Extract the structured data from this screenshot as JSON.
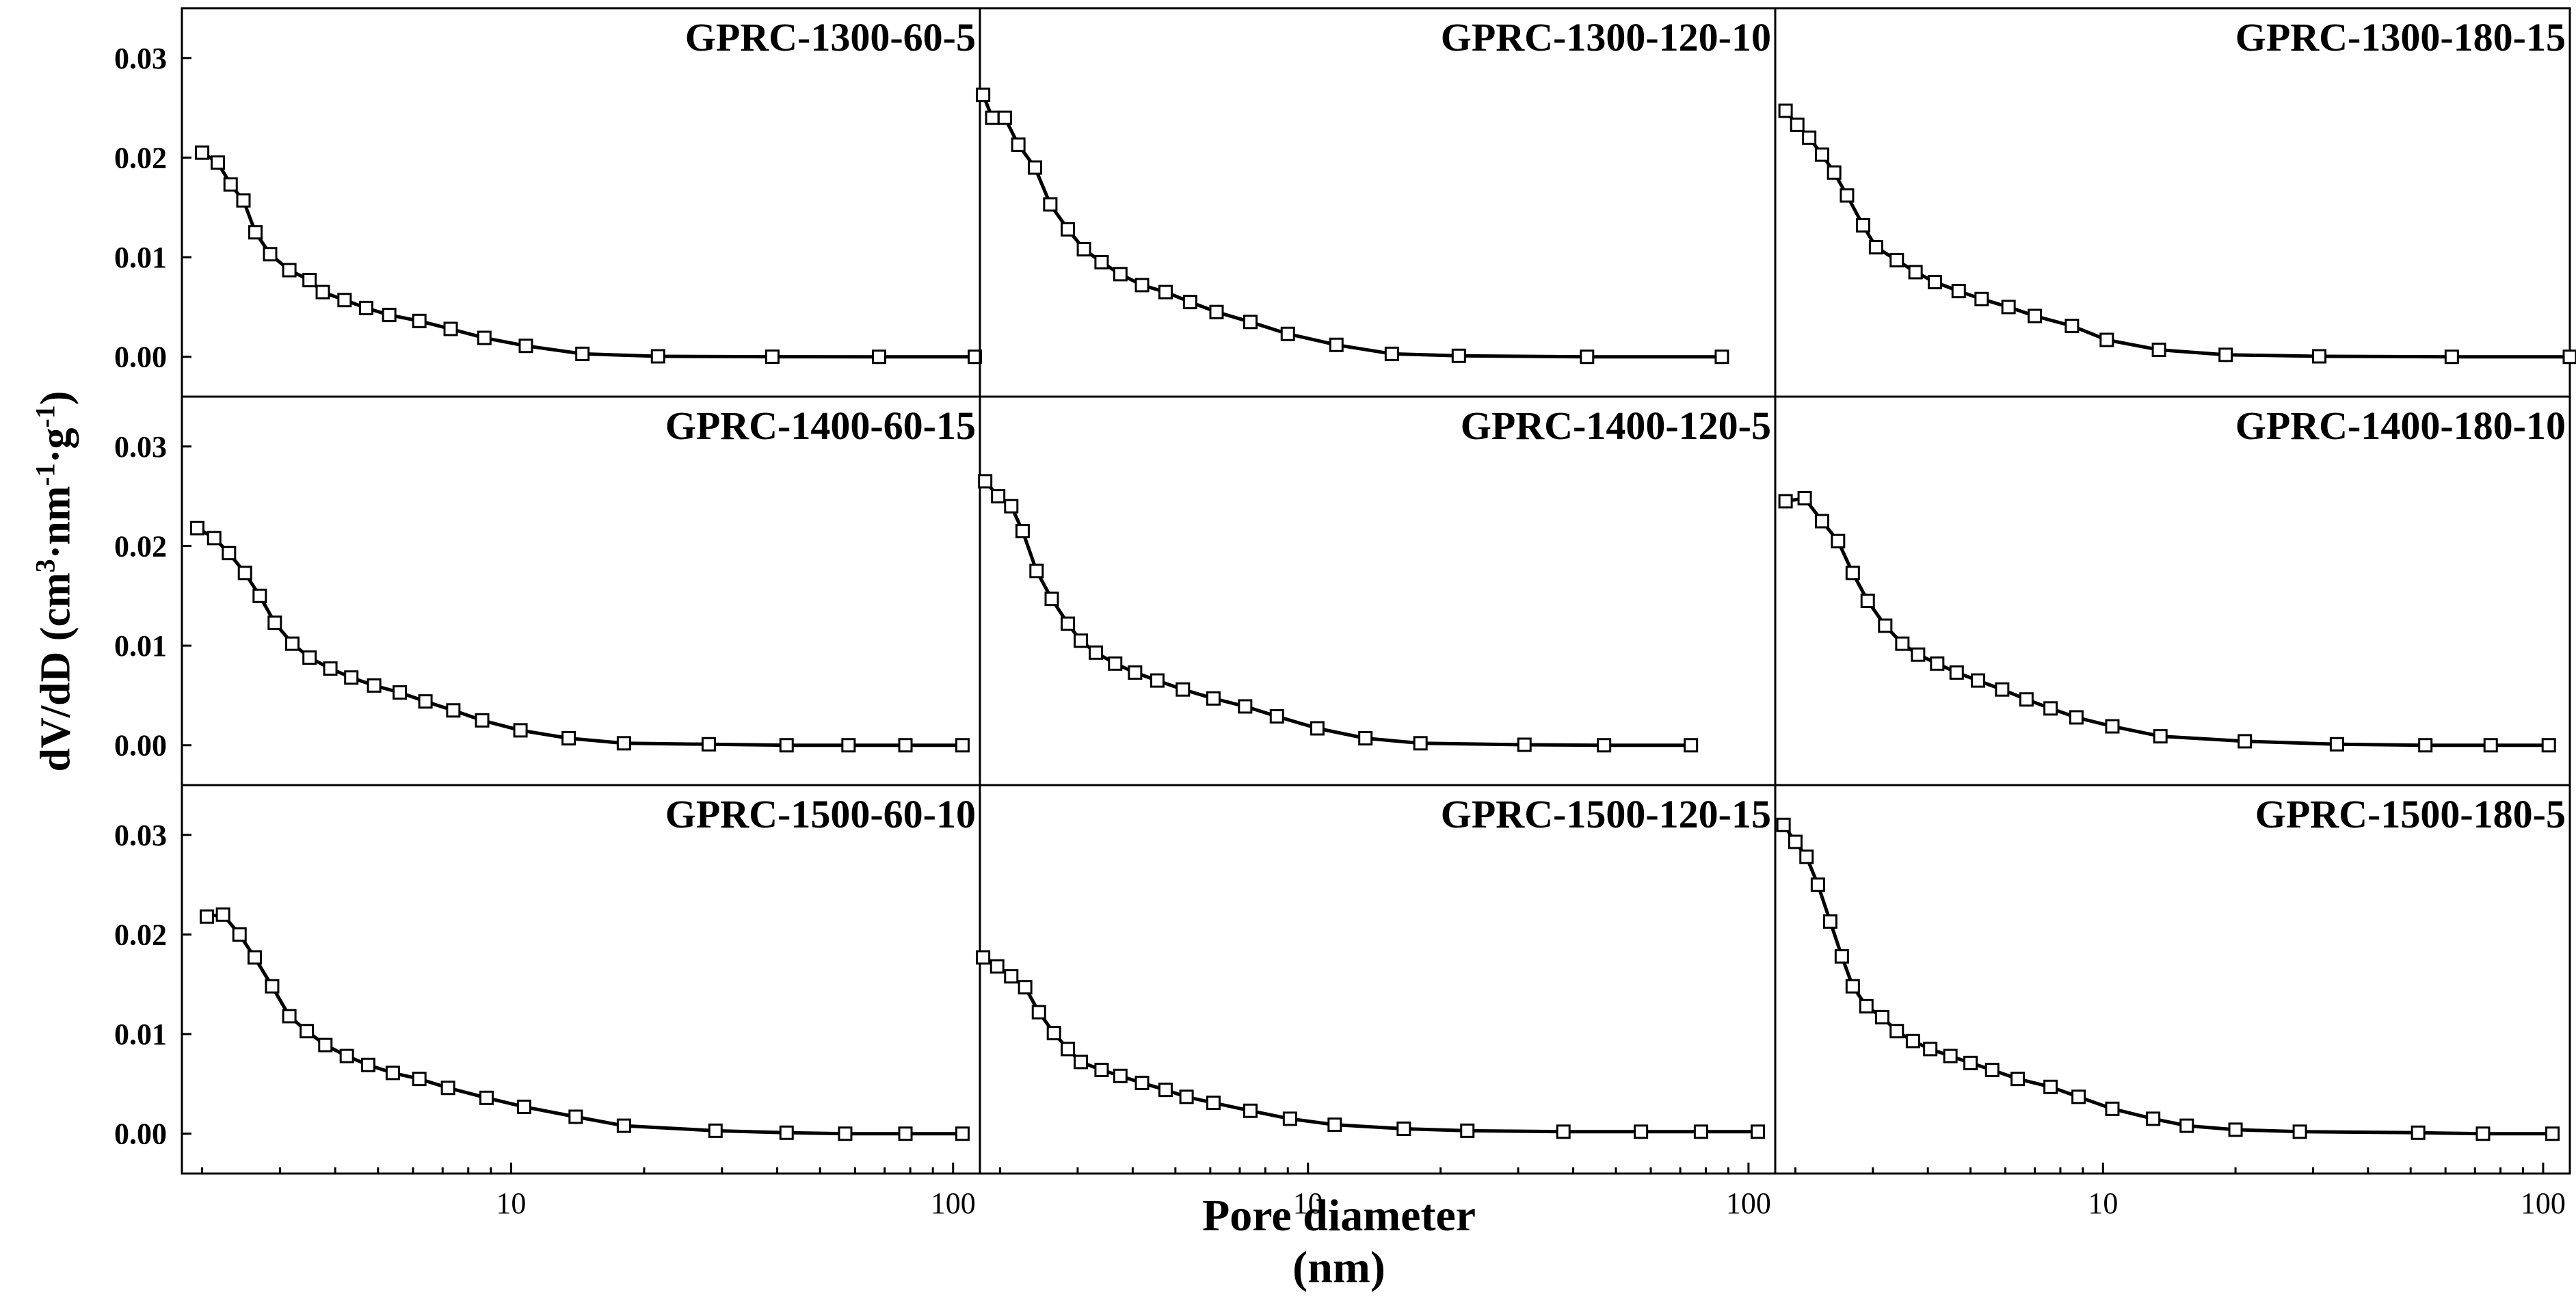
{
  "figure": {
    "ylabel": {
      "main": "dV/dD (cm",
      "s1": "3",
      "mid1": "·nm",
      "s2": "-1",
      "mid2": "·g",
      "s3": "-1",
      "end": ")"
    },
    "xlabel": "Pore diameter (nm)",
    "colors": {
      "line": "#000000",
      "marker_fill": "#ffffff",
      "axes": "#000000"
    }
  },
  "chart_data": {
    "type": "scatter",
    "xscale": "log",
    "xlim": [
      1.8,
      115
    ],
    "ylim": [
      -0.004,
      0.035
    ],
    "xticks": [
      10,
      100
    ],
    "xtick_labels": [
      "10",
      "100"
    ],
    "yticks": [
      0.0,
      0.01,
      0.02,
      0.03
    ],
    "ytick_labels": [
      "0.00",
      "0.01",
      "0.02",
      "0.03"
    ],
    "grid": false,
    "marker": "open-square",
    "panels": [
      {
        "name": "GPRC-1300-60-5",
        "x": [
          2.0,
          2.17,
          2.32,
          2.48,
          2.64,
          2.85,
          3.15,
          3.5,
          3.75,
          4.2,
          4.7,
          5.3,
          6.2,
          7.3,
          8.7,
          10.8,
          14.5,
          21.5,
          39,
          68,
          112
        ],
        "y": [
          0.0205,
          0.0195,
          0.0173,
          0.0157,
          0.0125,
          0.0103,
          0.0087,
          0.0077,
          0.0065,
          0.0057,
          0.0049,
          0.0042,
          0.0036,
          0.0028,
          0.0019,
          0.0011,
          0.0003,
          5e-05,
          1e-05,
          0.0,
          0.0
        ]
      },
      {
        "name": "GPRC-1300-120-10",
        "x": [
          1.83,
          1.92,
          2.05,
          2.2,
          2.4,
          2.6,
          2.85,
          3.1,
          3.4,
          3.75,
          4.2,
          4.75,
          5.4,
          6.2,
          7.4,
          9.0,
          11.6,
          15.5,
          22,
          43,
          87
        ],
        "y": [
          0.0263,
          0.024,
          0.024,
          0.0213,
          0.019,
          0.0153,
          0.0128,
          0.0108,
          0.0095,
          0.0083,
          0.0072,
          0.0065,
          0.0055,
          0.0045,
          0.0035,
          0.0023,
          0.0012,
          0.0003,
          0.0001,
          0.0,
          0.0
        ]
      },
      {
        "name": "GPRC-1300-180-15",
        "x": [
          1.9,
          2.02,
          2.15,
          2.3,
          2.45,
          2.62,
          2.85,
          3.05,
          3.4,
          3.75,
          4.15,
          4.7,
          5.3,
          6.1,
          7.0,
          8.5,
          10.2,
          13.4,
          19,
          31,
          62,
          115
        ],
        "y": [
          0.0247,
          0.0233,
          0.022,
          0.0203,
          0.0185,
          0.0162,
          0.0132,
          0.011,
          0.0097,
          0.0085,
          0.0075,
          0.0066,
          0.0058,
          0.005,
          0.0041,
          0.0031,
          0.0017,
          0.0007,
          0.0002,
          5e-05,
          0.0,
          0.0
        ]
      },
      {
        "name": "GPRC-1400-60-15",
        "x": [
          1.95,
          2.13,
          2.3,
          2.5,
          2.7,
          2.92,
          3.2,
          3.5,
          3.9,
          4.35,
          4.9,
          5.6,
          6.4,
          7.4,
          8.6,
          10.5,
          13.5,
          18,
          28,
          42,
          58,
          78,
          105
        ],
        "y": [
          0.0218,
          0.0208,
          0.0193,
          0.0173,
          0.015,
          0.0123,
          0.0102,
          0.0088,
          0.0077,
          0.0068,
          0.006,
          0.0053,
          0.0044,
          0.0035,
          0.0025,
          0.0015,
          0.0007,
          0.0002,
          0.0001,
          0.0,
          0.0,
          0.0,
          0.0
        ]
      },
      {
        "name": "GPRC-1400-120-5",
        "x": [
          1.85,
          1.98,
          2.12,
          2.25,
          2.42,
          2.62,
          2.85,
          3.05,
          3.3,
          3.65,
          4.05,
          4.55,
          5.2,
          6.1,
          7.2,
          8.5,
          10.5,
          13.5,
          18,
          31,
          47,
          74
        ],
        "y": [
          0.0265,
          0.025,
          0.024,
          0.0215,
          0.0175,
          0.0147,
          0.0122,
          0.0105,
          0.0093,
          0.0082,
          0.0073,
          0.0065,
          0.0056,
          0.0047,
          0.0039,
          0.0029,
          0.0017,
          0.0007,
          0.0002,
          5e-05,
          0.0,
          0.0
        ]
      },
      {
        "name": "GPRC-1400-180-10",
        "x": [
          1.9,
          2.1,
          2.3,
          2.5,
          2.7,
          2.92,
          3.2,
          3.5,
          3.8,
          4.2,
          4.65,
          5.2,
          5.9,
          6.7,
          7.6,
          8.7,
          10.5,
          13.5,
          21,
          34,
          54,
          76,
          103
        ],
        "y": [
          0.0245,
          0.0248,
          0.0225,
          0.0205,
          0.0173,
          0.0145,
          0.012,
          0.0102,
          0.0091,
          0.0082,
          0.0073,
          0.0065,
          0.0056,
          0.0046,
          0.0037,
          0.0028,
          0.0019,
          0.0009,
          0.0004,
          0.0001,
          0.0,
          0.0,
          0.0
        ]
      },
      {
        "name": "GPRC-1500-60-10",
        "x": [
          2.05,
          2.23,
          2.43,
          2.63,
          2.88,
          3.15,
          3.45,
          3.8,
          4.25,
          4.75,
          5.4,
          6.2,
          7.2,
          8.8,
          10.7,
          14.0,
          18,
          29,
          42,
          57,
          78,
          105
        ],
        "y": [
          0.0218,
          0.022,
          0.02,
          0.0177,
          0.0148,
          0.0118,
          0.0103,
          0.0089,
          0.0078,
          0.0069,
          0.0061,
          0.0055,
          0.0046,
          0.0036,
          0.0027,
          0.0017,
          0.0008,
          0.0003,
          0.0001,
          0.0,
          0.0,
          0.0
        ]
      },
      {
        "name": "GPRC-1500-120-15",
        "x": [
          1.83,
          1.97,
          2.12,
          2.28,
          2.45,
          2.65,
          2.85,
          3.05,
          3.4,
          3.75,
          4.2,
          4.75,
          5.3,
          6.1,
          7.4,
          9.1,
          11.5,
          16.5,
          23,
          38,
          57,
          78,
          105
        ],
        "y": [
          0.0177,
          0.0168,
          0.0158,
          0.0147,
          0.0122,
          0.0101,
          0.0085,
          0.0072,
          0.0064,
          0.0058,
          0.0051,
          0.0044,
          0.0037,
          0.0031,
          0.0023,
          0.0015,
          0.0009,
          0.0005,
          0.0003,
          0.0002,
          0.0002,
          0.0002,
          0.0002
        ]
      },
      {
        "name": "GPRC-1500-180-5",
        "x": [
          1.88,
          2.0,
          2.12,
          2.25,
          2.4,
          2.55,
          2.7,
          2.9,
          3.15,
          3.4,
          3.7,
          4.05,
          4.5,
          5.0,
          5.6,
          6.4,
          7.6,
          8.8,
          10.5,
          13.0,
          15.5,
          20,
          28,
          52,
          73,
          105
        ],
        "y": [
          0.031,
          0.0293,
          0.0278,
          0.025,
          0.0213,
          0.0178,
          0.0148,
          0.0128,
          0.0117,
          0.0103,
          0.0093,
          0.0085,
          0.0078,
          0.0071,
          0.0064,
          0.0055,
          0.0047,
          0.0037,
          0.0025,
          0.0015,
          0.0008,
          0.0004,
          0.0002,
          0.0001,
          0.0,
          0.0
        ]
      }
    ]
  }
}
